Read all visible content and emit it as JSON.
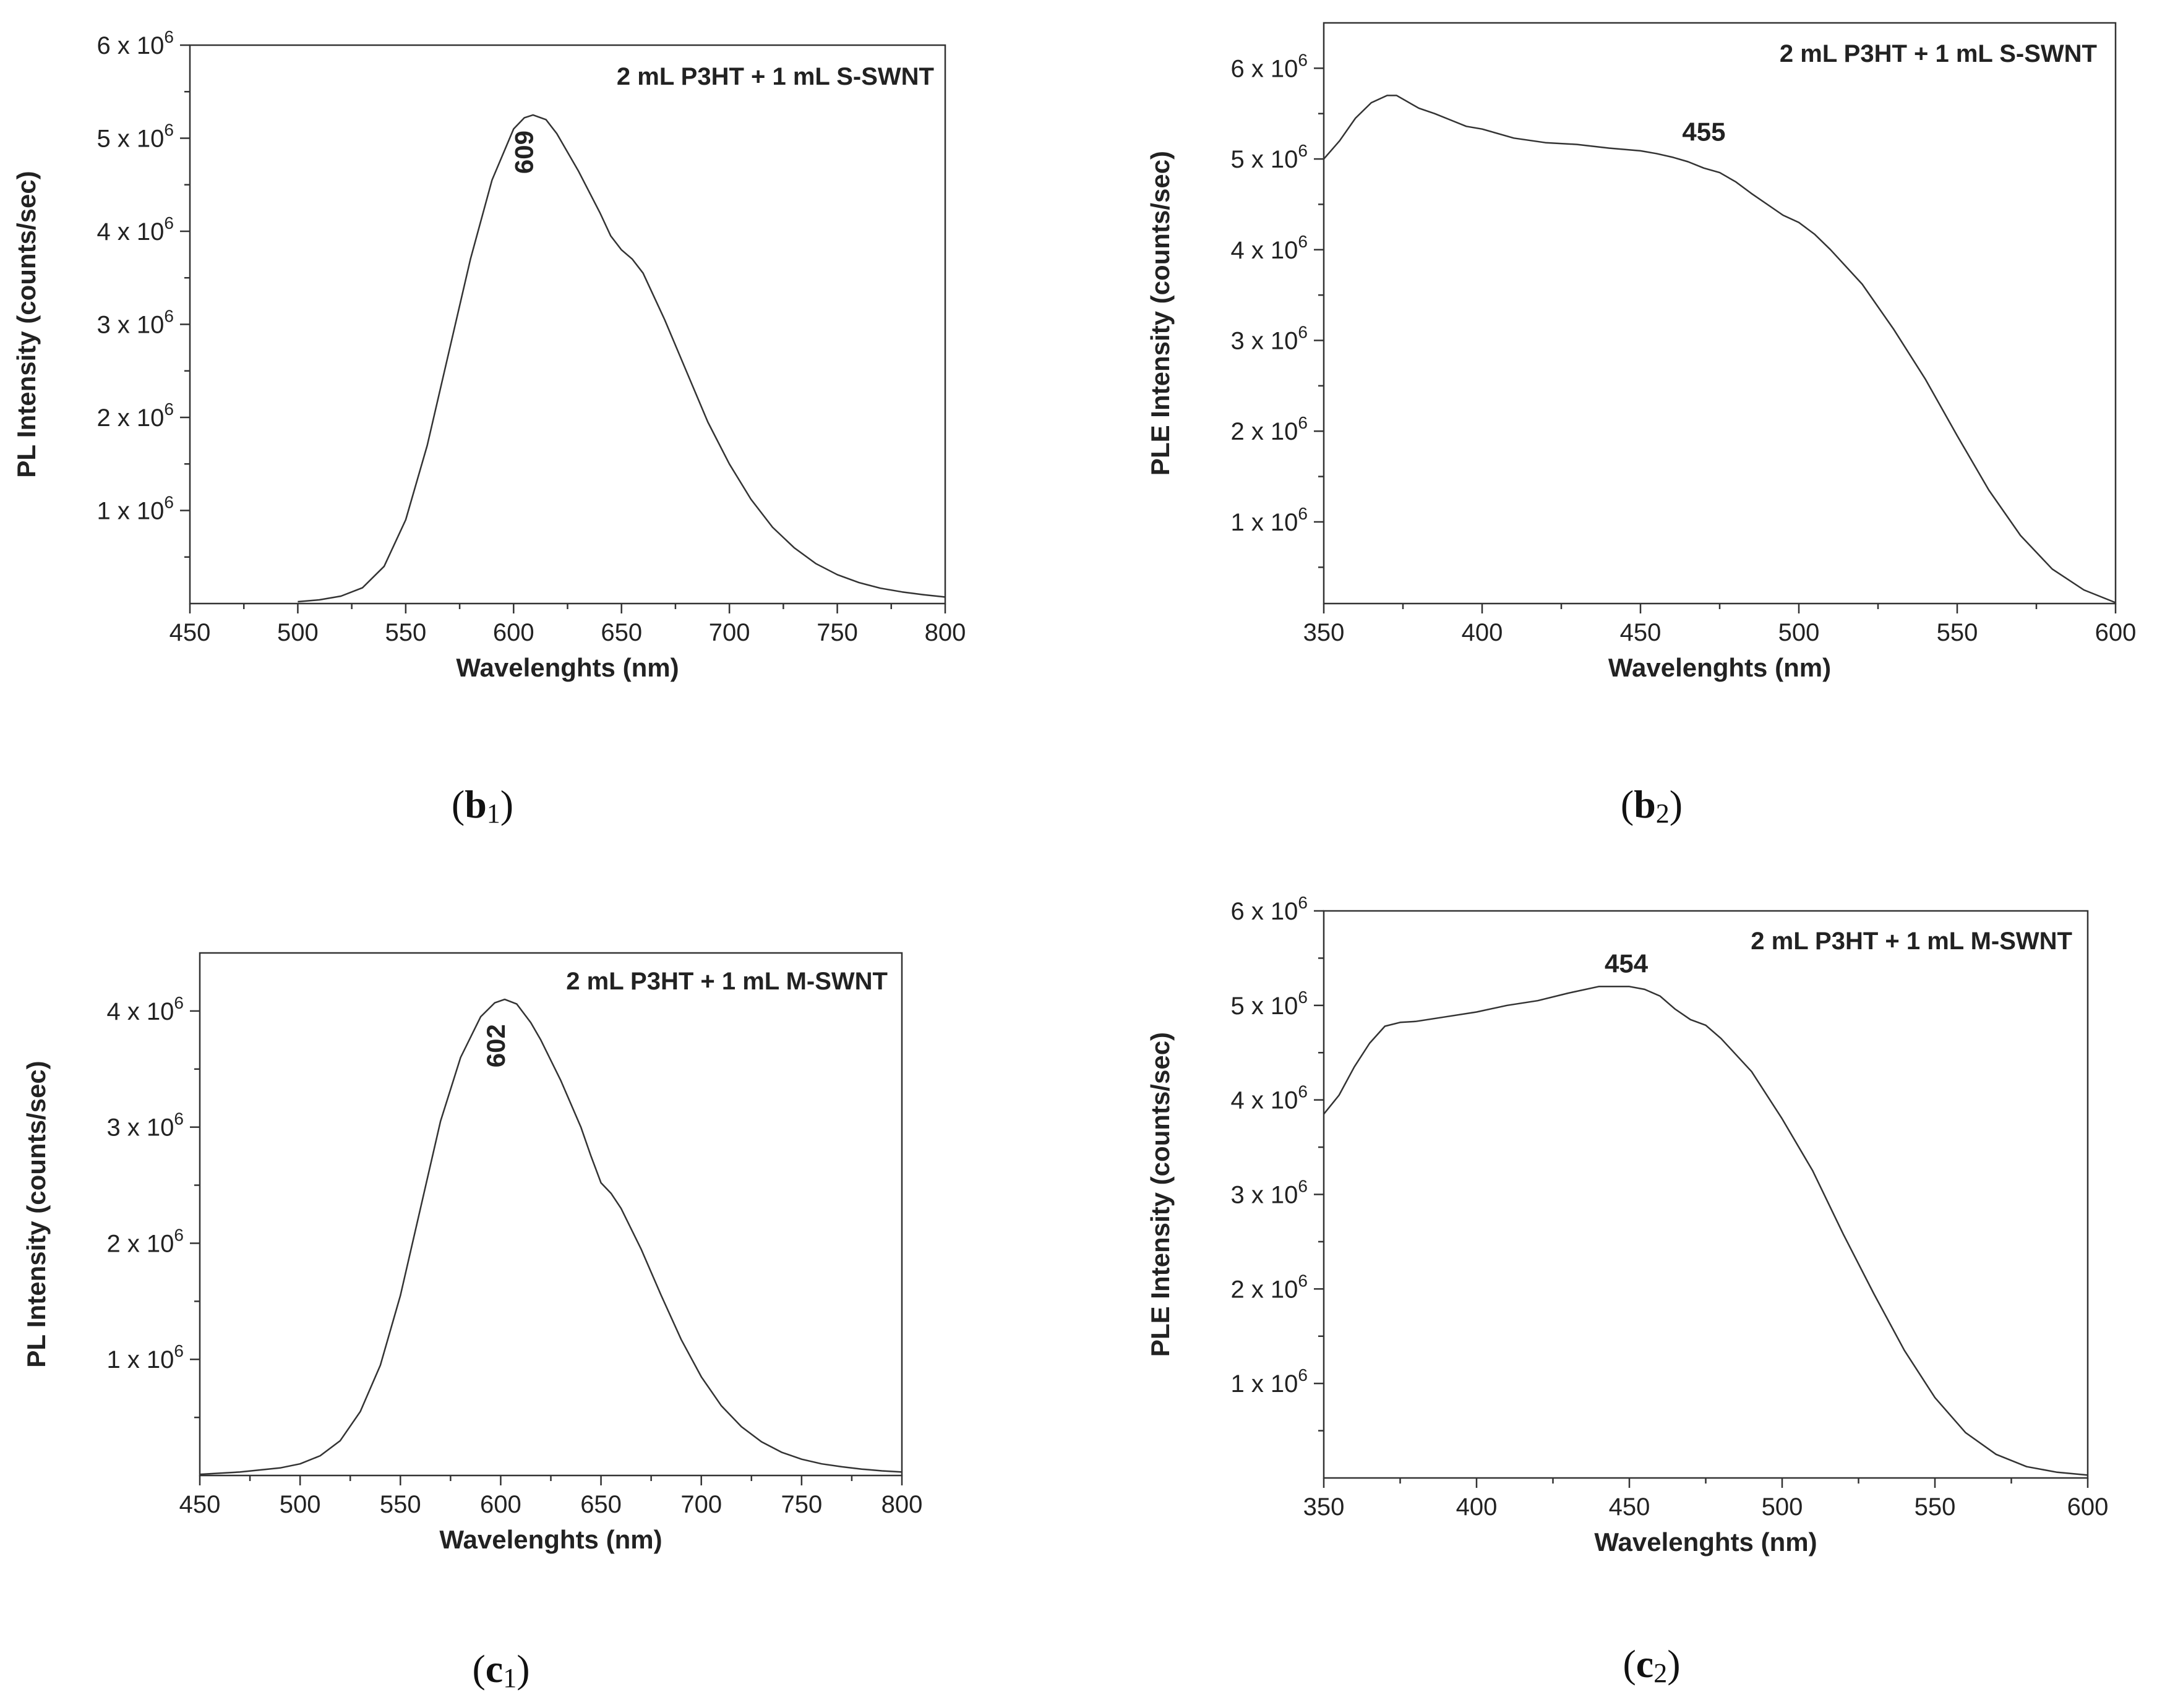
{
  "figure": {
    "panels": [
      "b1",
      "b2",
      "c1",
      "c2"
    ]
  },
  "chart_data": [
    {
      "id": "b1",
      "type": "line",
      "panel_label": {
        "letter": "b",
        "index": "1"
      },
      "legend": "2 mL P3HT + 1 mL S-SWNT",
      "xlabel": "Wavelenghts (nm)",
      "ylabel": "PL Intensity (counts/sec)",
      "xlim": [
        450,
        800
      ],
      "ylim": [
        0,
        6000000
      ],
      "x_ticks": [
        450,
        500,
        550,
        600,
        650,
        700,
        750,
        800
      ],
      "y_ticks": [
        {
          "value": 1000000,
          "mant": "1",
          "exp": "6"
        },
        {
          "value": 2000000,
          "mant": "2",
          "exp": "6"
        },
        {
          "value": 3000000,
          "mant": "3",
          "exp": "6"
        },
        {
          "value": 4000000,
          "mant": "4",
          "exp": "6"
        },
        {
          "value": 5000000,
          "mant": "5",
          "exp": "6"
        },
        {
          "value": 6000000,
          "mant": "6",
          "exp": "6"
        }
      ],
      "tick_mult": "x 10",
      "annotation": {
        "text": "609",
        "x": 609,
        "y": 4850000,
        "rotate": true
      },
      "series": [
        {
          "name": "PL",
          "x": [
            500,
            510,
            520,
            530,
            540,
            550,
            560,
            570,
            580,
            590,
            600,
            605,
            609,
            615,
            620,
            630,
            640,
            645,
            650,
            655,
            660,
            670,
            680,
            690,
            700,
            710,
            720,
            730,
            740,
            750,
            760,
            770,
            780,
            790,
            800
          ],
          "y": [
            20000,
            40000,
            80000,
            170000,
            400000,
            900000,
            1700000,
            2700000,
            3700000,
            4550000,
            5100000,
            5220000,
            5250000,
            5200000,
            5050000,
            4650000,
            4200000,
            3950000,
            3800000,
            3700000,
            3550000,
            3050000,
            2500000,
            1950000,
            1500000,
            1120000,
            820000,
            600000,
            430000,
            310000,
            225000,
            165000,
            125000,
            95000,
            70000
          ]
        }
      ]
    },
    {
      "id": "b2",
      "type": "line",
      "panel_label": {
        "letter": "b",
        "index": "2"
      },
      "legend": "2 mL P3HT + 1 mL S-SWNT",
      "xlabel": "Wavelenghts (nm)",
      "ylabel": "PLE Intensity (counts/sec)",
      "xlim": [
        350,
        600
      ],
      "ylim": [
        100000,
        6500000
      ],
      "x_ticks": [
        350,
        400,
        450,
        500,
        550,
        600
      ],
      "y_ticks": [
        {
          "value": 1000000,
          "mant": "1",
          "exp": "6"
        },
        {
          "value": 2000000,
          "mant": "2",
          "exp": "6"
        },
        {
          "value": 3000000,
          "mant": "3",
          "exp": "6"
        },
        {
          "value": 4000000,
          "mant": "4",
          "exp": "6"
        },
        {
          "value": 5000000,
          "mant": "5",
          "exp": "6"
        },
        {
          "value": 6000000,
          "mant": "6",
          "exp": "6"
        }
      ],
      "tick_mult": "x 10",
      "annotation": {
        "text": "455",
        "x": 470,
        "y": 5200000,
        "rotate": false
      },
      "series": [
        {
          "name": "PLE",
          "x": [
            350,
            355,
            360,
            365,
            370,
            373,
            376,
            380,
            385,
            390,
            395,
            400,
            410,
            420,
            430,
            440,
            450,
            455,
            460,
            465,
            470,
            475,
            480,
            485,
            490,
            495,
            500,
            505,
            510,
            520,
            530,
            540,
            550,
            560,
            570,
            580,
            590,
            600
          ],
          "y": [
            5000000,
            5200000,
            5450000,
            5620000,
            5700000,
            5700000,
            5640000,
            5560000,
            5500000,
            5430000,
            5360000,
            5330000,
            5230000,
            5180000,
            5160000,
            5120000,
            5090000,
            5060000,
            5020000,
            4970000,
            4900000,
            4850000,
            4750000,
            4620000,
            4500000,
            4380000,
            4300000,
            4170000,
            4000000,
            3620000,
            3120000,
            2570000,
            1950000,
            1350000,
            850000,
            480000,
            250000,
            110000
          ]
        }
      ]
    },
    {
      "id": "c1",
      "type": "line",
      "panel_label": {
        "letter": "c",
        "index": "1"
      },
      "legend": "2 mL P3HT + 1 mL M-SWNT",
      "xlabel": "Wavelenghts (nm)",
      "ylabel": "PL Intensity (counts/sec)",
      "xlim": [
        450,
        800
      ],
      "ylim": [
        0,
        4500000
      ],
      "x_ticks": [
        450,
        500,
        550,
        600,
        650,
        700,
        750,
        800
      ],
      "y_ticks": [
        {
          "value": 1000000,
          "mant": "1",
          "exp": "6"
        },
        {
          "value": 2000000,
          "mant": "2",
          "exp": "6"
        },
        {
          "value": 3000000,
          "mant": "3",
          "exp": "6"
        },
        {
          "value": 4000000,
          "mant": "4",
          "exp": "6"
        }
      ],
      "tick_mult": "x 10",
      "annotation": {
        "text": "602",
        "x": 602,
        "y": 3700000,
        "rotate": true
      },
      "series": [
        {
          "name": "PL",
          "x": [
            450,
            470,
            490,
            500,
            510,
            520,
            530,
            540,
            550,
            560,
            570,
            580,
            590,
            597,
            602,
            608,
            615,
            620,
            630,
            640,
            645,
            650,
            655,
            660,
            670,
            680,
            690,
            700,
            710,
            720,
            730,
            740,
            750,
            760,
            770,
            780,
            790,
            800
          ],
          "y": [
            10000,
            30000,
            65000,
            100000,
            170000,
            300000,
            550000,
            950000,
            1550000,
            2300000,
            3050000,
            3600000,
            3950000,
            4070000,
            4100000,
            4060000,
            3900000,
            3750000,
            3400000,
            3000000,
            2750000,
            2520000,
            2430000,
            2300000,
            1950000,
            1550000,
            1170000,
            850000,
            600000,
            420000,
            290000,
            200000,
            140000,
            100000,
            75000,
            55000,
            40000,
            30000
          ]
        }
      ]
    },
    {
      "id": "c2",
      "type": "line",
      "panel_label": {
        "letter": "c",
        "index": "2"
      },
      "legend": "2 mL P3HT + 1 mL M-SWNT",
      "xlabel": "Wavelenghts (nm)",
      "ylabel": "PLE Intensity (counts/sec)",
      "xlim": [
        350,
        600
      ],
      "ylim": [
        0,
        6000000
      ],
      "x_ticks": [
        350,
        400,
        450,
        500,
        550,
        600
      ],
      "y_ticks": [
        {
          "value": 1000000,
          "mant": "1",
          "exp": "6"
        },
        {
          "value": 2000000,
          "mant": "2",
          "exp": "6"
        },
        {
          "value": 3000000,
          "mant": "3",
          "exp": "6"
        },
        {
          "value": 4000000,
          "mant": "4",
          "exp": "6"
        },
        {
          "value": 5000000,
          "mant": "5",
          "exp": "6"
        },
        {
          "value": 6000000,
          "mant": "6",
          "exp": "6"
        }
      ],
      "tick_mult": "x 10",
      "annotation": {
        "text": "454",
        "x": 449,
        "y": 5350000,
        "rotate": false
      },
      "series": [
        {
          "name": "PLE",
          "x": [
            350,
            355,
            360,
            365,
            370,
            375,
            380,
            390,
            400,
            410,
            420,
            430,
            440,
            445,
            450,
            455,
            460,
            465,
            470,
            475,
            480,
            490,
            500,
            510,
            520,
            530,
            540,
            550,
            560,
            570,
            580,
            590,
            600
          ],
          "y": [
            3850000,
            4050000,
            4350000,
            4600000,
            4780000,
            4820000,
            4830000,
            4880000,
            4930000,
            5000000,
            5050000,
            5130000,
            5200000,
            5200000,
            5200000,
            5170000,
            5100000,
            4960000,
            4850000,
            4790000,
            4650000,
            4300000,
            3800000,
            3250000,
            2580000,
            1950000,
            1350000,
            850000,
            480000,
            250000,
            120000,
            60000,
            30000
          ]
        }
      ]
    }
  ]
}
